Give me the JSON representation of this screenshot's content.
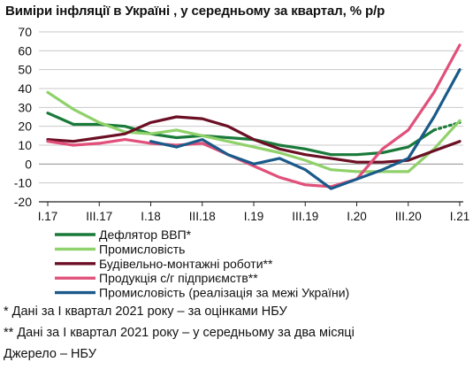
{
  "chart_data": {
    "type": "line",
    "title": "Виміри інфляції в Україні , у середньому за квартал, % р/р",
    "xlabel": "",
    "ylabel": "",
    "ylim": [
      -20,
      70
    ],
    "yticks": [
      -20,
      -10,
      0,
      10,
      20,
      30,
      40,
      50,
      60,
      70
    ],
    "grid": true,
    "legend_placement": "bottom",
    "x_tick_labels": [
      "I.17",
      "III.17",
      "I.18",
      "III.18",
      "I.19",
      "III.19",
      "I.20",
      "III.20",
      "I.21"
    ],
    "categories": [
      "I.17",
      "II.17",
      "III.17",
      "IV.17",
      "I.18",
      "II.18",
      "III.18",
      "IV.18",
      "I.19",
      "II.19",
      "III.19",
      "IV.19",
      "I.20",
      "II.20",
      "III.20",
      "IV.20",
      "I.21"
    ],
    "series": [
      {
        "name": "Дефлятор ВВП*",
        "color": "#1a7a3a",
        "dash_last_segment": true,
        "values": [
          27,
          21,
          21,
          20,
          16,
          14,
          15,
          14,
          13,
          10,
          8,
          5,
          5,
          6,
          9,
          18,
          22
        ]
      },
      {
        "name": "Промисловість",
        "color": "#8fd16a",
        "values": [
          38,
          29,
          22,
          17,
          16,
          18,
          15,
          12,
          9,
          6,
          2,
          -3,
          -4,
          -4,
          -4,
          8,
          23
        ]
      },
      {
        "name": "Будівельно-монтажні роботи**",
        "color": "#6b0f24",
        "values": [
          13,
          12,
          14,
          16,
          22,
          25,
          24,
          20,
          13,
          8,
          5,
          3,
          1,
          1,
          2,
          7,
          12
        ]
      },
      {
        "name": "Продукція с/г підприємств**",
        "color": "#e0507a",
        "values": [
          12,
          10,
          11,
          13,
          11,
          10,
          11,
          5,
          -1,
          -7,
          -11,
          -12,
          -8,
          8,
          18,
          38,
          63
        ]
      },
      {
        "name": "Промисловість (реалізація за межі України)",
        "color": "#1a5a8a",
        "start_index": 4,
        "values": [
          null,
          null,
          null,
          null,
          12,
          9,
          13,
          5,
          0,
          3,
          -3,
          -13,
          -8,
          -3,
          3,
          25,
          50
        ]
      }
    ]
  },
  "notes": [
    "* Дані за I квартал 2021 року – за оцінками НБУ",
    "** Дані за I квартал 2021 року – у середньому за два місяці",
    "Джерело – НБУ"
  ]
}
